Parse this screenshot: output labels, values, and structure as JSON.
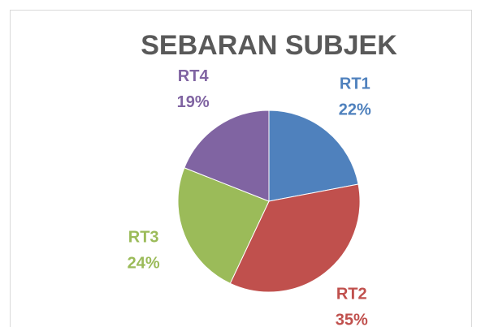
{
  "chart_data": {
    "type": "pie",
    "title": "SEBARAN SUBJEK",
    "categories": [
      "RT1",
      "RT2",
      "RT3",
      "RT4"
    ],
    "values": [
      22,
      35,
      24,
      19
    ],
    "value_labels": [
      "22%",
      "35%",
      "24%",
      "19%"
    ],
    "colors": [
      "#4f81bd",
      "#c0504d",
      "#9bbb59",
      "#8064a2"
    ]
  }
}
